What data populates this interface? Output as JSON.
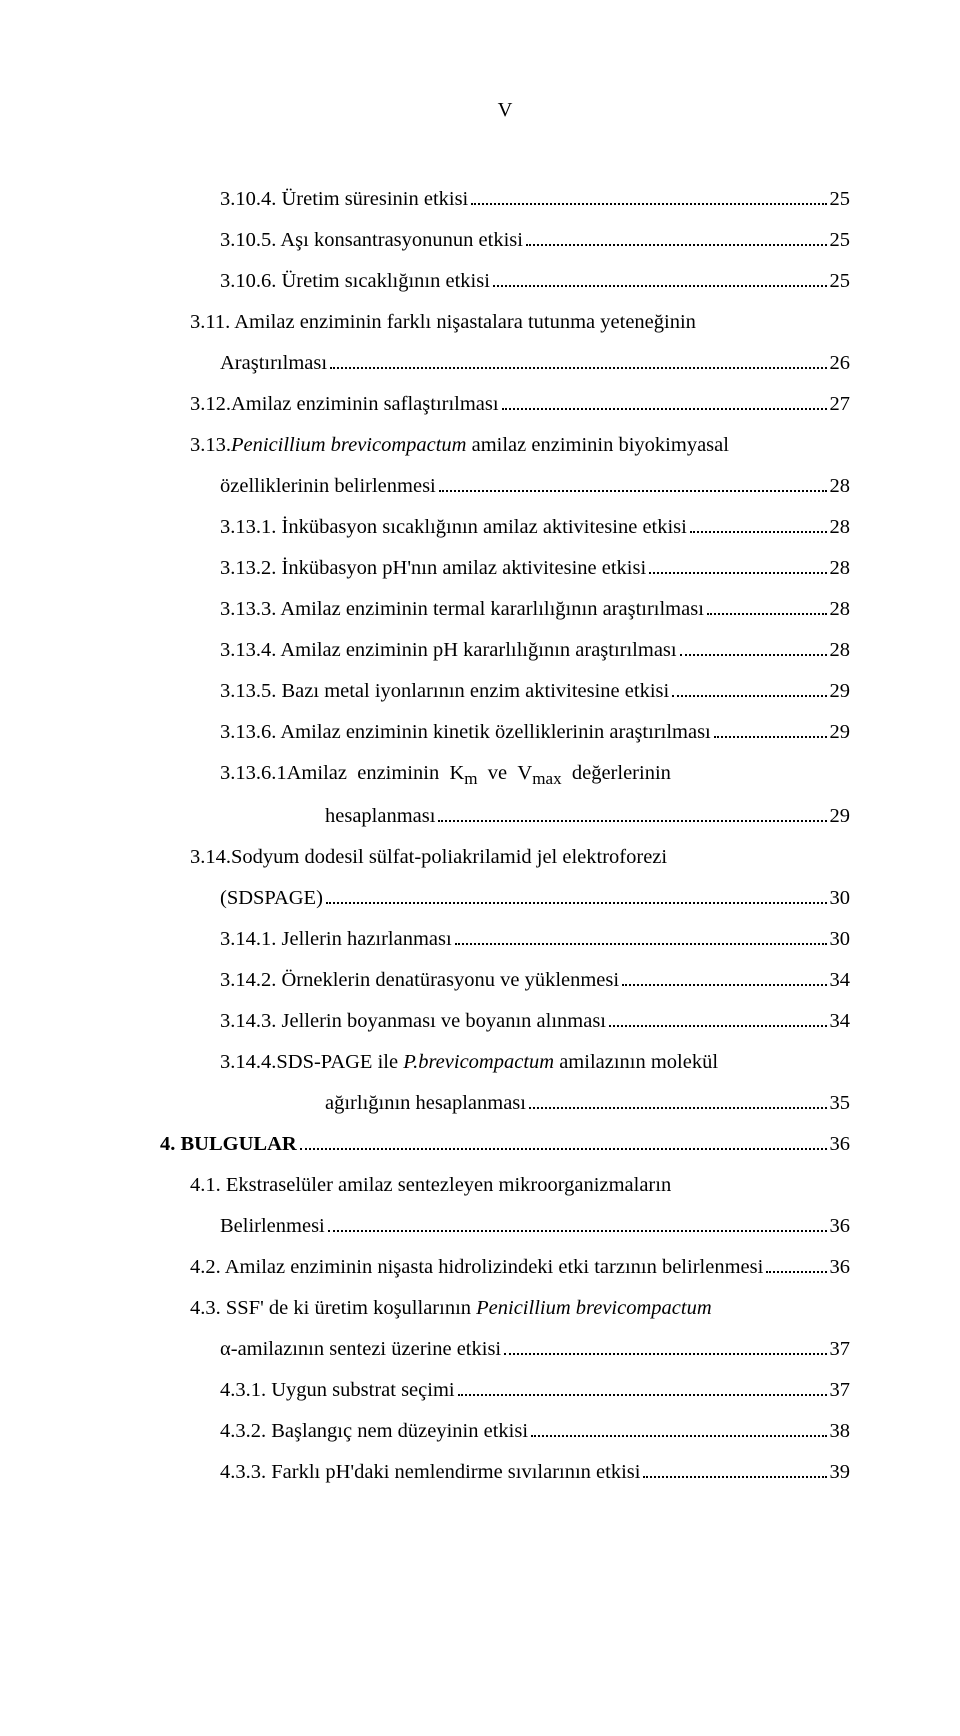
{
  "page_number": "V",
  "toc": [
    {
      "indent": "ind1",
      "text": "3.10.4. Üretim süresinin etkisi",
      "page": "25"
    },
    {
      "indent": "ind1",
      "text": "3.10.5. Aşı konsantrasyonunun etkisi",
      "page": "25"
    },
    {
      "indent": "ind1",
      "text": "3.10.6. Üretim sıcaklığının etkisi",
      "page": "25"
    },
    {
      "indent": "indA",
      "wrap": true,
      "line1": "3.11. Amilaz enziminin farklı nişastalara tutunma yeteneğinin",
      "line2indent": "ind1",
      "line2": "Araştırılması",
      "page": "26"
    },
    {
      "indent": "indA",
      "text": "3.12.Amilaz enziminin saflaştırılması",
      "page": "27"
    },
    {
      "indent": "indA",
      "wrap": true,
      "line1_html": "3.13.<span class=\"italic\">Penicillium brevicompactum</span> amilaz enziminin biyokimyasal",
      "line2indent": "ind1",
      "line2": "özelliklerinin belirlenmesi",
      "page": "28"
    },
    {
      "indent": "ind1",
      "text": "3.13.1. İnkübasyon sıcaklığının amilaz aktivitesine etkisi",
      "page": "28"
    },
    {
      "indent": "ind1",
      "text": "3.13.2. İnkübasyon pH'nın amilaz aktivitesine etkisi",
      "page": "28"
    },
    {
      "indent": "ind1",
      "text": "3.13.3. Amilaz enziminin termal kararlılığının araştırılması",
      "page": "28"
    },
    {
      "indent": "ind1",
      "text": "3.13.4. Amilaz enziminin pH kararlılığının araştırılması",
      "page": "28"
    },
    {
      "indent": "ind1",
      "text": "3.13.5. Bazı metal iyonlarının enzim aktivitesine etkisi",
      "page": "29"
    },
    {
      "indent": "ind1",
      "text": "3.13.6. Amilaz enziminin kinetik özelliklerinin araştırılması",
      "page": "29"
    },
    {
      "indent": "ind1",
      "wrap": true,
      "line1_html": "3.13.6.1Amilaz&nbsp;&nbsp;enziminin&nbsp;&nbsp;K<sub>m</sub>&nbsp;&nbsp;ve&nbsp;&nbsp;V<sub>max</sub>&nbsp;&nbsp;değerlerinin",
      "line2indent": "ind3",
      "line2": "hesaplanması",
      "page": " 29"
    },
    {
      "indent": "indA",
      "wrap": true,
      "line1": "3.14.Sodyum dodesil sülfat-poliakrilamid jel elektroforezi",
      "line2indent": "ind1",
      "line2": "(SDSPAGE)",
      "page": "30"
    },
    {
      "indent": "ind1",
      "text": "3.14.1. Jellerin hazırlanması",
      "page": "30"
    },
    {
      "indent": "ind1",
      "text": "3.14.2. Örneklerin denatürasyonu ve yüklenmesi",
      "page": "34"
    },
    {
      "indent": "ind1",
      "text": "3.14.3. Jellerin boyanması ve boyanın alınması",
      "page": "34"
    },
    {
      "indent": "ind1",
      "wrap": true,
      "line1_html": "3.14.4.SDS-PAGE ile <span class=\"italic\">P.brevicompactum</span> amilazının molekül",
      "line2indent": "ind3",
      "line2": "ağırlığının hesaplanması",
      "page": "35"
    },
    {
      "indent": "ind0",
      "bold": true,
      "text": "4. BULGULAR",
      "page": "36"
    },
    {
      "indent": "indA",
      "wrap": true,
      "line1": "4.1. Ekstraselüler amilaz sentezleyen mikroorganizmaların",
      "line2indent": "ind1",
      "line2": "Belirlenmesi",
      "page": "36"
    },
    {
      "indent": "indA",
      "text": "4.2. Amilaz enziminin nişasta hidrolizindeki etki tarzının belirlenmesi",
      "page": "36"
    },
    {
      "indent": "indA",
      "wrap": true,
      "line1_html": "4.3. SSF' de ki üretim koşullarının <span class=\"italic\">Penicillium brevicompactum</span>",
      "line2indent": "ind1",
      "line2": "α-amilazının sentezi üzerine etkisi",
      "page": "37"
    },
    {
      "indent": "ind1",
      "text": "4.3.1. Uygun substrat seçimi",
      "page": "37"
    },
    {
      "indent": "ind1",
      "text": "4.3.2. Başlangıç nem düzeyinin etkisi",
      "page": "38"
    },
    {
      "indent": "ind1",
      "text": "4.3.3. Farklı pH'daki nemlendirme sıvılarının etkisi",
      "page": "39"
    }
  ]
}
